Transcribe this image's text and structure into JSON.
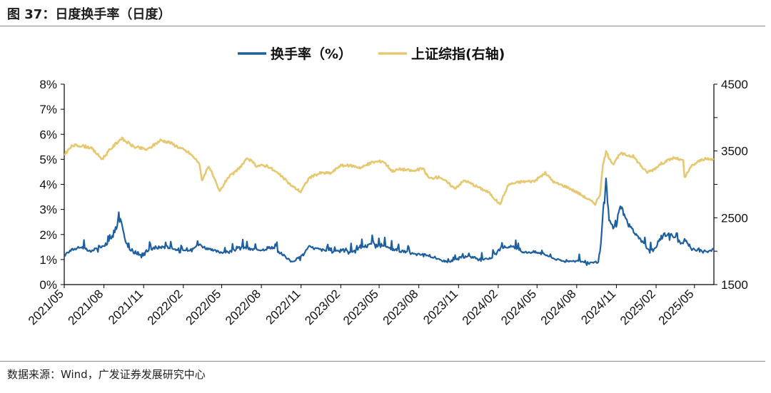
{
  "header": {
    "title": "图 37：日度换手率（日度）"
  },
  "footer": {
    "source": "数据来源：Wind，广发证券发展研究中心"
  },
  "colors": {
    "turnover": "#1f5fa0",
    "index": "#e6c870",
    "axis": "#000000"
  },
  "chart_data": {
    "type": "line",
    "title": "",
    "legend": {
      "position": "top",
      "items": [
        "换手率（%）",
        "上证综指(右轴)"
      ]
    },
    "x_ticks": [
      "2021/05",
      "2021/08",
      "2021/11",
      "2022/02",
      "2022/05",
      "2022/08",
      "2022/11",
      "2023/02",
      "2023/05",
      "2023/08",
      "2023/11",
      "2024/02",
      "2024/05",
      "2024/08",
      "2024/11",
      "2025/02",
      "2025/05"
    ],
    "y_left": {
      "ticks": [
        "0%",
        "1%",
        "2%",
        "3%",
        "4%",
        "5%",
        "6%",
        "7%",
        "8%"
      ],
      "range": [
        0,
        8
      ],
      "unit": "%"
    },
    "y_right": {
      "ticks": [
        "1500",
        "2500",
        "3500",
        "4500"
      ],
      "range": [
        1500,
        4500
      ]
    },
    "x_range": [
      "2021-05-01",
      "2025-06-15"
    ],
    "series": [
      {
        "name": "换手率（%）",
        "axis": "left",
        "points": [
          [
            "2021-05-01",
            1.2
          ],
          [
            "2021-05-20",
            1.4
          ],
          [
            "2021-06-10",
            1.5
          ],
          [
            "2021-07-01",
            1.3
          ],
          [
            "2021-07-20",
            1.5
          ],
          [
            "2021-08-05",
            1.6
          ],
          [
            "2021-08-20",
            1.9
          ],
          [
            "2021-09-01",
            2.3
          ],
          [
            "2021-09-08",
            2.6
          ],
          [
            "2021-09-20",
            1.7
          ],
          [
            "2021-10-05",
            1.3
          ],
          [
            "2021-10-25",
            1.2
          ],
          [
            "2021-11-15",
            1.4
          ],
          [
            "2021-12-10",
            1.5
          ],
          [
            "2022-01-05",
            1.5
          ],
          [
            "2022-01-25",
            1.3
          ],
          [
            "2022-02-15",
            1.4
          ],
          [
            "2022-03-10",
            1.6
          ],
          [
            "2022-04-01",
            1.4
          ],
          [
            "2022-04-25",
            1.3
          ],
          [
            "2022-05-20",
            1.3
          ],
          [
            "2022-06-15",
            1.5
          ],
          [
            "2022-07-10",
            1.4
          ],
          [
            "2022-08-05",
            1.4
          ],
          [
            "2022-08-25",
            1.5
          ],
          [
            "2022-09-20",
            1.2
          ],
          [
            "2022-10-10",
            0.9
          ],
          [
            "2022-10-30",
            1.1
          ],
          [
            "2022-11-20",
            1.5
          ],
          [
            "2022-12-15",
            1.4
          ],
          [
            "2023-01-10",
            1.3
          ],
          [
            "2023-02-01",
            1.4
          ],
          [
            "2023-02-25",
            1.3
          ],
          [
            "2023-03-20",
            1.5
          ],
          [
            "2023-04-15",
            1.6
          ],
          [
            "2023-05-10",
            1.5
          ],
          [
            "2023-06-05",
            1.4
          ],
          [
            "2023-07-01",
            1.3
          ],
          [
            "2023-07-25",
            1.2
          ],
          [
            "2023-08-20",
            1.2
          ],
          [
            "2023-09-15",
            1.0
          ],
          [
            "2023-10-10",
            0.9
          ],
          [
            "2023-11-05",
            1.1
          ],
          [
            "2023-12-01",
            1.1
          ],
          [
            "2023-12-25",
            1.0
          ],
          [
            "2024-01-20",
            1.1
          ],
          [
            "2024-02-10",
            1.5
          ],
          [
            "2024-03-05",
            1.5
          ],
          [
            "2024-04-01",
            1.3
          ],
          [
            "2024-04-25",
            1.3
          ],
          [
            "2024-05-20",
            1.2
          ],
          [
            "2024-06-15",
            1.0
          ],
          [
            "2024-07-10",
            0.9
          ],
          [
            "2024-08-05",
            0.95
          ],
          [
            "2024-09-01",
            0.85
          ],
          [
            "2024-09-20",
            0.9
          ],
          [
            "2024-09-26",
            1.6
          ],
          [
            "2024-10-01",
            2.9
          ],
          [
            "2024-10-08",
            4.2
          ],
          [
            "2024-10-15",
            2.5
          ],
          [
            "2024-10-30",
            2.2
          ],
          [
            "2024-11-10",
            3.2
          ],
          [
            "2024-11-25",
            2.5
          ],
          [
            "2024-12-15",
            2.0
          ],
          [
            "2025-01-10",
            1.5
          ],
          [
            "2025-01-25",
            1.3
          ],
          [
            "2025-02-15",
            2.0
          ],
          [
            "2025-03-10",
            2.0
          ],
          [
            "2025-04-01",
            1.6
          ],
          [
            "2025-04-10",
            1.8
          ],
          [
            "2025-04-25",
            1.4
          ],
          [
            "2025-05-15",
            1.4
          ],
          [
            "2025-06-01",
            1.3
          ],
          [
            "2025-06-15",
            1.4
          ]
        ]
      },
      {
        "name": "上证综指(右轴)",
        "axis": "right",
        "points": [
          [
            "2021-05-01",
            3450
          ],
          [
            "2021-05-20",
            3580
          ],
          [
            "2021-06-10",
            3580
          ],
          [
            "2021-07-01",
            3550
          ],
          [
            "2021-07-28",
            3380
          ],
          [
            "2021-08-15",
            3520
          ],
          [
            "2021-09-10",
            3690
          ],
          [
            "2021-10-10",
            3560
          ],
          [
            "2021-11-10",
            3520
          ],
          [
            "2021-12-10",
            3660
          ],
          [
            "2021-12-31",
            3630
          ],
          [
            "2022-01-20",
            3560
          ],
          [
            "2022-02-15",
            3470
          ],
          [
            "2022-03-10",
            3320
          ],
          [
            "2022-03-16",
            3060
          ],
          [
            "2022-04-01",
            3280
          ],
          [
            "2022-04-26",
            2890
          ],
          [
            "2022-05-15",
            3100
          ],
          [
            "2022-06-01",
            3180
          ],
          [
            "2022-07-01",
            3390
          ],
          [
            "2022-07-20",
            3280
          ],
          [
            "2022-08-15",
            3280
          ],
          [
            "2022-09-15",
            3130
          ],
          [
            "2022-10-10",
            2980
          ],
          [
            "2022-10-31",
            2890
          ],
          [
            "2022-11-20",
            3100
          ],
          [
            "2022-12-15",
            3170
          ],
          [
            "2023-01-10",
            3170
          ],
          [
            "2023-01-30",
            3280
          ],
          [
            "2023-02-25",
            3280
          ],
          [
            "2023-03-20",
            3250
          ],
          [
            "2023-04-15",
            3330
          ],
          [
            "2023-05-10",
            3350
          ],
          [
            "2023-05-31",
            3200
          ],
          [
            "2023-06-20",
            3230
          ],
          [
            "2023-07-20",
            3200
          ],
          [
            "2023-08-10",
            3240
          ],
          [
            "2023-08-25",
            3090
          ],
          [
            "2023-09-20",
            3110
          ],
          [
            "2023-10-23",
            2940
          ],
          [
            "2023-11-15",
            3060
          ],
          [
            "2023-12-10",
            2980
          ],
          [
            "2024-01-10",
            2880
          ],
          [
            "2024-02-05",
            2700
          ],
          [
            "2024-02-25",
            3000
          ],
          [
            "2024-03-25",
            3040
          ],
          [
            "2024-04-25",
            3050
          ],
          [
            "2024-05-20",
            3170
          ],
          [
            "2024-06-10",
            3030
          ],
          [
            "2024-07-10",
            2960
          ],
          [
            "2024-08-05",
            2870
          ],
          [
            "2024-09-13",
            2710
          ],
          [
            "2024-09-24",
            2850
          ],
          [
            "2024-10-01",
            3300
          ],
          [
            "2024-10-08",
            3480
          ],
          [
            "2024-10-25",
            3300
          ],
          [
            "2024-11-10",
            3460
          ],
          [
            "2024-12-10",
            3420
          ],
          [
            "2025-01-10",
            3180
          ],
          [
            "2025-01-25",
            3220
          ],
          [
            "2025-02-15",
            3320
          ],
          [
            "2025-03-15",
            3400
          ],
          [
            "2025-04-05",
            3350
          ],
          [
            "2025-04-08",
            3100
          ],
          [
            "2025-04-25",
            3280
          ],
          [
            "2025-05-20",
            3380
          ],
          [
            "2025-06-15",
            3370
          ]
        ]
      }
    ]
  }
}
